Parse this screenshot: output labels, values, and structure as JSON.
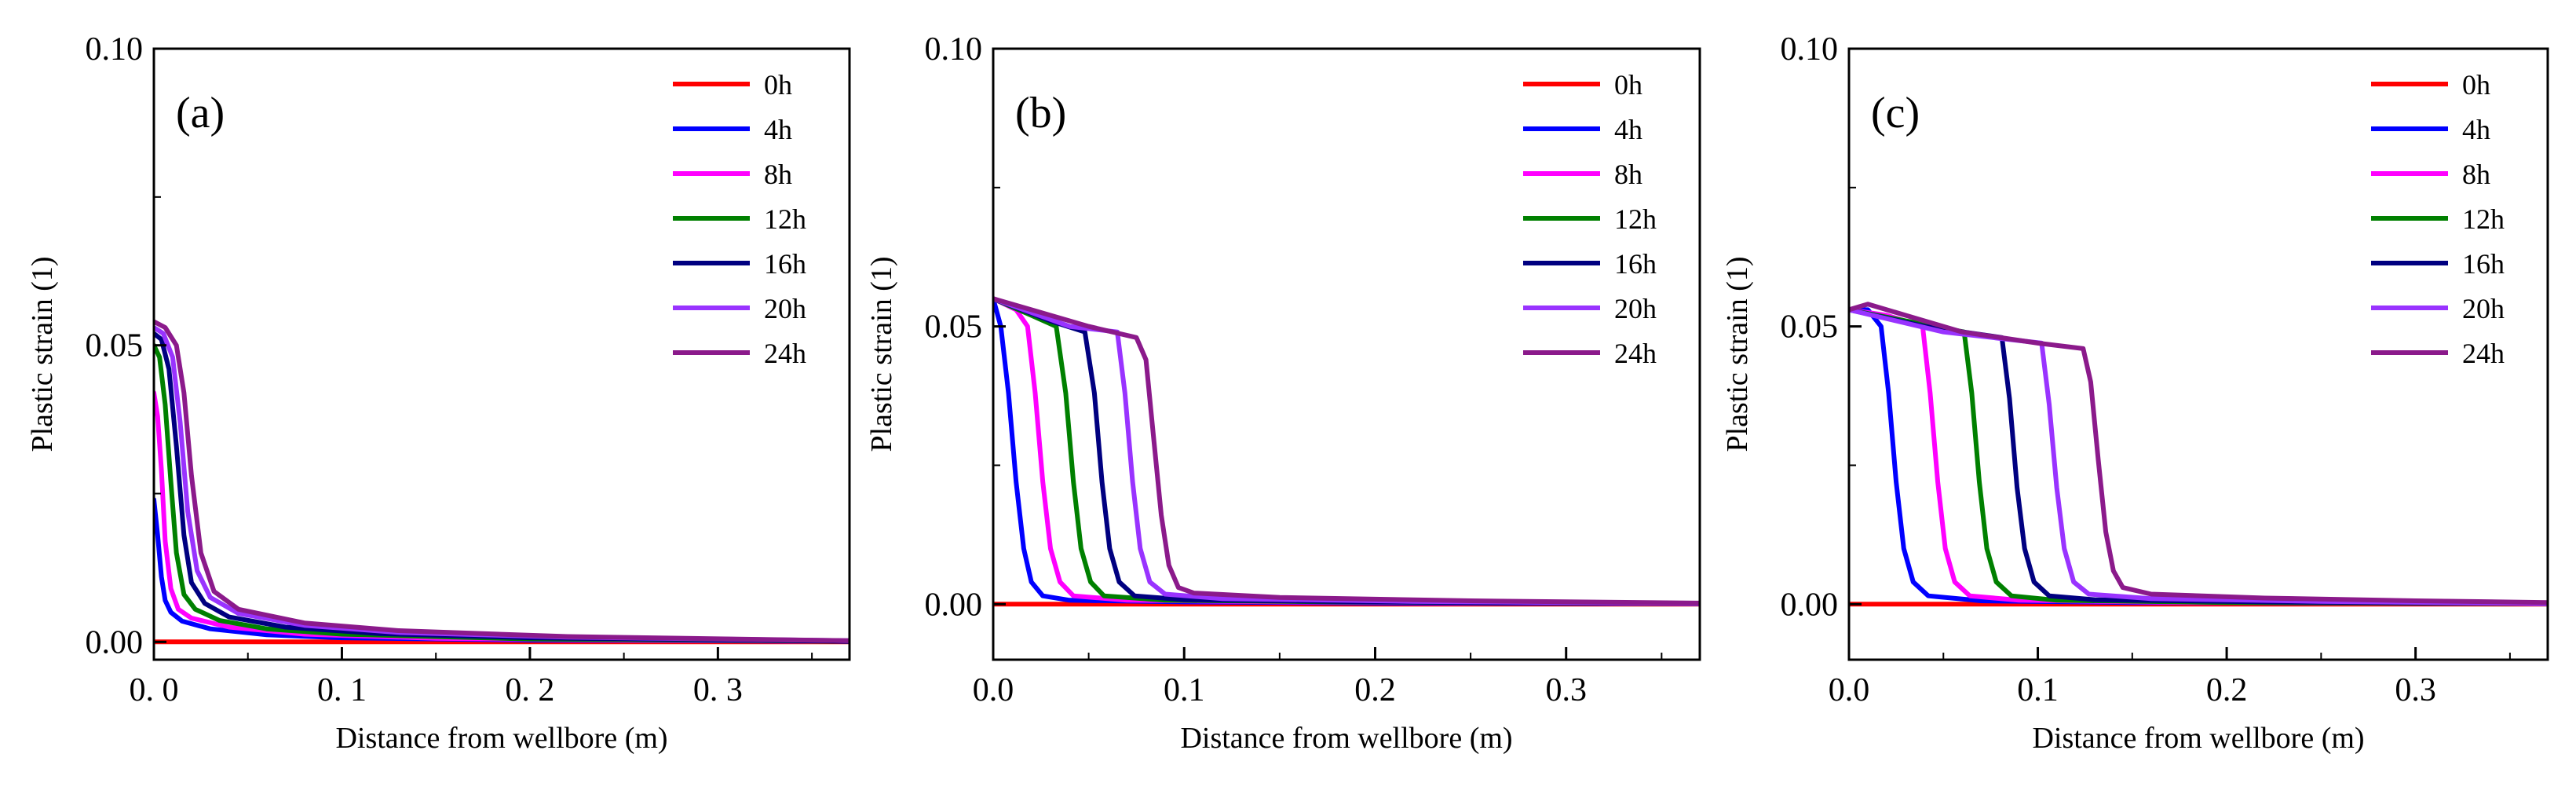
{
  "chart_data": [
    {
      "type": "line",
      "panel_label": "(a)",
      "xlabel": "Distance from wellbore (m)",
      "ylabel": "Plastic strain (1)",
      "xlim": [
        0,
        0.37
      ],
      "ylim": [
        -0.003,
        0.1
      ],
      "xticks": [
        0.0,
        0.1,
        0.2,
        0.3
      ],
      "xtick_labels": [
        "0. 0",
        "0. 1",
        "0. 2",
        "0. 3"
      ],
      "yticks": [
        0.0,
        0.05,
        0.1
      ],
      "ytick_labels": [
        "0.00",
        "0.05",
        "0.10"
      ],
      "legend_position": "top-right",
      "series": [
        {
          "name": "0h",
          "color": "#ff0000",
          "points": [
            [
              0,
              0
            ],
            [
              0.37,
              0
            ]
          ]
        },
        {
          "name": "4h",
          "color": "#0000ff",
          "points": [
            [
              0,
              0.024
            ],
            [
              0.002,
              0.018
            ],
            [
              0.004,
              0.011
            ],
            [
              0.006,
              0.007
            ],
            [
              0.009,
              0.005
            ],
            [
              0.015,
              0.0035
            ],
            [
              0.03,
              0.0022
            ],
            [
              0.06,
              0.0012
            ],
            [
              0.1,
              0.0007
            ],
            [
              0.2,
              0.0003
            ],
            [
              0.37,
              0.0001
            ]
          ]
        },
        {
          "name": "8h",
          "color": "#ff00ff",
          "points": [
            [
              0,
              0.042
            ],
            [
              0.002,
              0.038
            ],
            [
              0.004,
              0.029
            ],
            [
              0.006,
              0.017
            ],
            [
              0.009,
              0.009
            ],
            [
              0.013,
              0.0055
            ],
            [
              0.02,
              0.004
            ],
            [
              0.04,
              0.0025
            ],
            [
              0.08,
              0.0013
            ],
            [
              0.15,
              0.0006
            ],
            [
              0.25,
              0.0003
            ],
            [
              0.37,
              0.0001
            ]
          ]
        },
        {
          "name": "12h",
          "color": "#008000",
          "points": [
            [
              0,
              0.05
            ],
            [
              0.003,
              0.048
            ],
            [
              0.006,
              0.04
            ],
            [
              0.009,
              0.027
            ],
            [
              0.012,
              0.015
            ],
            [
              0.016,
              0.008
            ],
            [
              0.022,
              0.0055
            ],
            [
              0.035,
              0.0036
            ],
            [
              0.06,
              0.0022
            ],
            [
              0.1,
              0.0013
            ],
            [
              0.2,
              0.0005
            ],
            [
              0.37,
              0.0001
            ]
          ]
        },
        {
          "name": "16h",
          "color": "#000080",
          "points": [
            [
              0,
              0.052
            ],
            [
              0.004,
              0.051
            ],
            [
              0.008,
              0.046
            ],
            [
              0.012,
              0.033
            ],
            [
              0.016,
              0.018
            ],
            [
              0.02,
              0.01
            ],
            [
              0.027,
              0.0065
            ],
            [
              0.04,
              0.0042
            ],
            [
              0.07,
              0.0025
            ],
            [
              0.12,
              0.0014
            ],
            [
              0.2,
              0.0007
            ],
            [
              0.37,
              0.0001
            ]
          ]
        },
        {
          "name": "20h",
          "color": "#9933ff",
          "points": [
            [
              0,
              0.053
            ],
            [
              0.005,
              0.052
            ],
            [
              0.01,
              0.048
            ],
            [
              0.014,
              0.037
            ],
            [
              0.018,
              0.022
            ],
            [
              0.023,
              0.012
            ],
            [
              0.03,
              0.0075
            ],
            [
              0.045,
              0.0048
            ],
            [
              0.08,
              0.0028
            ],
            [
              0.13,
              0.0016
            ],
            [
              0.22,
              0.0008
            ],
            [
              0.37,
              0.0002
            ]
          ]
        },
        {
          "name": "24h",
          "color": "#8b1a8b",
          "points": [
            [
              0,
              0.054
            ],
            [
              0.006,
              0.053
            ],
            [
              0.012,
              0.05
            ],
            [
              0.016,
              0.042
            ],
            [
              0.02,
              0.028
            ],
            [
              0.025,
              0.015
            ],
            [
              0.032,
              0.0085
            ],
            [
              0.045,
              0.0055
            ],
            [
              0.08,
              0.0032
            ],
            [
              0.13,
              0.0019
            ],
            [
              0.22,
              0.0009
            ],
            [
              0.37,
              0.0002
            ]
          ]
        }
      ]
    },
    {
      "type": "line",
      "panel_label": "(b)",
      "xlabel": "Distance from wellbore (m)",
      "ylabel": "Plastic strain (1)",
      "xlim": [
        0,
        0.37
      ],
      "ylim": [
        -0.01,
        0.1
      ],
      "xticks": [
        0.0,
        0.1,
        0.2,
        0.3
      ],
      "xtick_labels": [
        "0.0",
        "0.1",
        "0.2",
        "0.3"
      ],
      "yticks": [
        0.0,
        0.05,
        0.1
      ],
      "ytick_labels": [
        "0.00",
        "0.05",
        "0.10"
      ],
      "legend_position": "top-right",
      "series": [
        {
          "name": "0h",
          "color": "#ff0000",
          "points": [
            [
              0,
              0
            ],
            [
              0.37,
              0
            ]
          ]
        },
        {
          "name": "4h",
          "color": "#0000ff",
          "points": [
            [
              0,
              0.055
            ],
            [
              0.004,
              0.05
            ],
            [
              0.008,
              0.038
            ],
            [
              0.012,
              0.022
            ],
            [
              0.016,
              0.01
            ],
            [
              0.02,
              0.004
            ],
            [
              0.026,
              0.0015
            ],
            [
              0.04,
              0.0007
            ],
            [
              0.1,
              0.0004
            ],
            [
              0.2,
              0.0002
            ],
            [
              0.37,
              0.0001
            ]
          ]
        },
        {
          "name": "8h",
          "color": "#ff00ff",
          "points": [
            [
              0,
              0.055
            ],
            [
              0.012,
              0.053
            ],
            [
              0.018,
              0.05
            ],
            [
              0.022,
              0.038
            ],
            [
              0.026,
              0.022
            ],
            [
              0.03,
              0.01
            ],
            [
              0.035,
              0.004
            ],
            [
              0.042,
              0.0015
            ],
            [
              0.07,
              0.0007
            ],
            [
              0.15,
              0.0004
            ],
            [
              0.37,
              0.0001
            ]
          ]
        },
        {
          "name": "12h",
          "color": "#008000",
          "points": [
            [
              0,
              0.055
            ],
            [
              0.02,
              0.052
            ],
            [
              0.033,
              0.05
            ],
            [
              0.038,
              0.038
            ],
            [
              0.042,
              0.022
            ],
            [
              0.046,
              0.01
            ],
            [
              0.051,
              0.004
            ],
            [
              0.058,
              0.0015
            ],
            [
              0.09,
              0.0007
            ],
            [
              0.18,
              0.0004
            ],
            [
              0.37,
              0.0001
            ]
          ]
        },
        {
          "name": "16h",
          "color": "#000080",
          "points": [
            [
              0,
              0.055
            ],
            [
              0.03,
              0.051
            ],
            [
              0.048,
              0.049
            ],
            [
              0.053,
              0.038
            ],
            [
              0.057,
              0.022
            ],
            [
              0.061,
              0.01
            ],
            [
              0.066,
              0.004
            ],
            [
              0.074,
              0.0015
            ],
            [
              0.1,
              0.0008
            ],
            [
              0.2,
              0.0004
            ],
            [
              0.37,
              0.0001
            ]
          ]
        },
        {
          "name": "20h",
          "color": "#9933ff",
          "points": [
            [
              0,
              0.055
            ],
            [
              0.04,
              0.05
            ],
            [
              0.065,
              0.049
            ],
            [
              0.069,
              0.038
            ],
            [
              0.073,
              0.022
            ],
            [
              0.077,
              0.01
            ],
            [
              0.082,
              0.004
            ],
            [
              0.09,
              0.0018
            ],
            [
              0.12,
              0.001
            ],
            [
              0.22,
              0.0005
            ],
            [
              0.37,
              0.0001
            ]
          ]
        },
        {
          "name": "24h",
          "color": "#8b1a8b",
          "points": [
            [
              0,
              0.055
            ],
            [
              0.02,
              0.053
            ],
            [
              0.05,
              0.05
            ],
            [
              0.075,
              0.048
            ],
            [
              0.08,
              0.044
            ],
            [
              0.084,
              0.03
            ],
            [
              0.088,
              0.016
            ],
            [
              0.092,
              0.007
            ],
            [
              0.097,
              0.003
            ],
            [
              0.105,
              0.002
            ],
            [
              0.15,
              0.0012
            ],
            [
              0.25,
              0.0006
            ],
            [
              0.37,
              0.0002
            ]
          ]
        }
      ]
    },
    {
      "type": "line",
      "panel_label": "(c)",
      "xlabel": "Distance from wellbore (m)",
      "ylabel": "Plastic strain (1)",
      "xlim": [
        0,
        0.37
      ],
      "ylim": [
        -0.01,
        0.1
      ],
      "xticks": [
        0.0,
        0.1,
        0.2,
        0.3
      ],
      "xtick_labels": [
        "0.0",
        "0.1",
        "0.2",
        "0.3"
      ],
      "yticks": [
        0.0,
        0.05,
        0.1
      ],
      "ytick_labels": [
        "0.00",
        "0.05",
        "0.10"
      ],
      "legend_position": "top-right",
      "series": [
        {
          "name": "0h",
          "color": "#ff0000",
          "points": [
            [
              0,
              0
            ],
            [
              0.37,
              0
            ]
          ]
        },
        {
          "name": "4h",
          "color": "#0000ff",
          "points": [
            [
              0,
              0.053
            ],
            [
              0.01,
              0.053
            ],
            [
              0.017,
              0.05
            ],
            [
              0.021,
              0.038
            ],
            [
              0.025,
              0.022
            ],
            [
              0.029,
              0.01
            ],
            [
              0.034,
              0.004
            ],
            [
              0.042,
              0.0015
            ],
            [
              0.07,
              0.0006
            ],
            [
              0.15,
              0.0003
            ],
            [
              0.37,
              0.0001
            ]
          ]
        },
        {
          "name": "8h",
          "color": "#ff00ff",
          "points": [
            [
              0,
              0.053
            ],
            [
              0.02,
              0.052
            ],
            [
              0.039,
              0.05
            ],
            [
              0.043,
              0.038
            ],
            [
              0.047,
              0.022
            ],
            [
              0.051,
              0.01
            ],
            [
              0.056,
              0.004
            ],
            [
              0.064,
              0.0015
            ],
            [
              0.09,
              0.0007
            ],
            [
              0.18,
              0.0003
            ],
            [
              0.37,
              0.0001
            ]
          ]
        },
        {
          "name": "12h",
          "color": "#008000",
          "points": [
            [
              0,
              0.053
            ],
            [
              0.03,
              0.051
            ],
            [
              0.061,
              0.049
            ],
            [
              0.065,
              0.038
            ],
            [
              0.069,
              0.022
            ],
            [
              0.073,
              0.01
            ],
            [
              0.078,
              0.004
            ],
            [
              0.086,
              0.0015
            ],
            [
              0.11,
              0.0007
            ],
            [
              0.2,
              0.0003
            ],
            [
              0.37,
              0.0001
            ]
          ]
        },
        {
          "name": "16h",
          "color": "#000080",
          "points": [
            [
              0,
              0.053
            ],
            [
              0.04,
              0.05
            ],
            [
              0.081,
              0.048
            ],
            [
              0.085,
              0.037
            ],
            [
              0.089,
              0.021
            ],
            [
              0.093,
              0.01
            ],
            [
              0.098,
              0.004
            ],
            [
              0.106,
              0.0015
            ],
            [
              0.13,
              0.0008
            ],
            [
              0.22,
              0.0004
            ],
            [
              0.37,
              0.0001
            ]
          ]
        },
        {
          "name": "20h",
          "color": "#9933ff",
          "points": [
            [
              0,
              0.053
            ],
            [
              0.05,
              0.049
            ],
            [
              0.102,
              0.047
            ],
            [
              0.106,
              0.036
            ],
            [
              0.11,
              0.021
            ],
            [
              0.114,
              0.01
            ],
            [
              0.119,
              0.004
            ],
            [
              0.127,
              0.0018
            ],
            [
              0.16,
              0.001
            ],
            [
              0.25,
              0.0005
            ],
            [
              0.37,
              0.0001
            ]
          ]
        },
        {
          "name": "24h",
          "color": "#8b1a8b",
          "points": [
            [
              0,
              0.053
            ],
            [
              0.01,
              0.054
            ],
            [
              0.03,
              0.052
            ],
            [
              0.06,
              0.049
            ],
            [
              0.1,
              0.047
            ],
            [
              0.124,
              0.046
            ],
            [
              0.128,
              0.04
            ],
            [
              0.132,
              0.026
            ],
            [
              0.136,
              0.013
            ],
            [
              0.14,
              0.006
            ],
            [
              0.145,
              0.003
            ],
            [
              0.16,
              0.0018
            ],
            [
              0.22,
              0.0011
            ],
            [
              0.3,
              0.0006
            ],
            [
              0.37,
              0.0003
            ]
          ]
        }
      ]
    }
  ]
}
